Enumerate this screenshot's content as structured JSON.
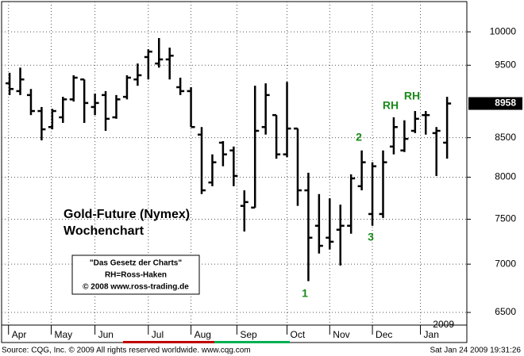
{
  "chart_data": {
    "type": "ohlc",
    "log_scale": true,
    "grid": true,
    "color": "#000000",
    "open": [
      9240,
      9130,
      9075,
      8855,
      8640,
      8770,
      9015,
      9295,
      8910,
      9075,
      8770,
      9050,
      9295,
      9620,
      9525,
      9585,
      9185,
      9130,
      8540,
      7935,
      8435,
      8335,
      7655,
      7635,
      8640,
      8800,
      8285,
      8620,
      7840,
      7425,
      7290,
      7380,
      7425,
      7890,
      7560,
      7560,
      8385,
      8335,
      8590,
      8800,
      8560,
      8435
    ],
    "high": [
      9390,
      9465,
      9160,
      8910,
      8885,
      9050,
      9355,
      9295,
      9095,
      9130,
      9075,
      9355,
      9525,
      9735,
      9905,
      9760,
      9320,
      9185,
      8640,
      8285,
      8455,
      8385,
      7840,
      9205,
      9240,
      8800,
      9260,
      8620,
      8055,
      7795,
      7745,
      7670,
      8035,
      8335,
      8185,
      8335,
      8770,
      8730,
      8855,
      8855,
      8640,
      9050
    ],
    "low": [
      9075,
      9075,
      8800,
      8465,
      8610,
      8695,
      8985,
      8695,
      8800,
      8590,
      8750,
      9015,
      9205,
      9295,
      9465,
      9295,
      9075,
      8640,
      7795,
      7890,
      8135,
      7890,
      7360,
      7635,
      8540,
      8230,
      8250,
      7655,
      6820,
      7115,
      7160,
      6985,
      7335,
      7840,
      7425,
      7515,
      8285,
      8315,
      8560,
      8540,
      8015,
      8230
    ],
    "close": [
      9160,
      9295,
      8855,
      8610,
      8855,
      9015,
      9320,
      8965,
      8965,
      8750,
      9015,
      9320,
      9355,
      9700,
      9585,
      9640,
      9130,
      8640,
      7840,
      8185,
      8285,
      8015,
      7700,
      8590,
      9075,
      8285,
      8620,
      7840,
      7290,
      7200,
      7245,
      7425,
      7985,
      8185,
      8135,
      8185,
      8640,
      8485,
      8750,
      8800,
      8590,
      8958
    ],
    "xlim": [
      -0.75,
      42.85
    ],
    "xticks": [
      {
        "value": -0.1,
        "label": "Apr"
      },
      {
        "value": 3.9,
        "label": "May"
      },
      {
        "value": 8,
        "label": "Jun"
      },
      {
        "value": 13,
        "label": "Jul"
      },
      {
        "value": 17,
        "label": "Aug"
      },
      {
        "value": 21.3,
        "label": "Sep"
      },
      {
        "value": 26,
        "label": "Oct"
      },
      {
        "value": 30,
        "label": "Nov"
      },
      {
        "value": 34,
        "label": "Dec"
      },
      {
        "value": 38.5,
        "label": "Jan"
      }
    ],
    "ylim": [
      6375,
      10475
    ],
    "yticks": [
      6500,
      7000,
      7500,
      8000,
      8500,
      9500,
      10000
    ],
    "last_value": 8958,
    "year_label": "2009",
    "title": "Gold-Future (Nymex)",
    "subtitle": "Wochenchart",
    "info_box": [
      "\"Das Gesetz der Charts\"",
      "RH=Ross-Haken",
      "© 2008 www.ross-trading.de"
    ],
    "annotations": [
      "1",
      "2",
      "3",
      "RH",
      "RH"
    ],
    "source": "Source: CQG, Inc. © 2009 All rights reserved worldwide. www.cqg.com",
    "timestamp": "Sat Jan 24 2009 19:31:26"
  }
}
